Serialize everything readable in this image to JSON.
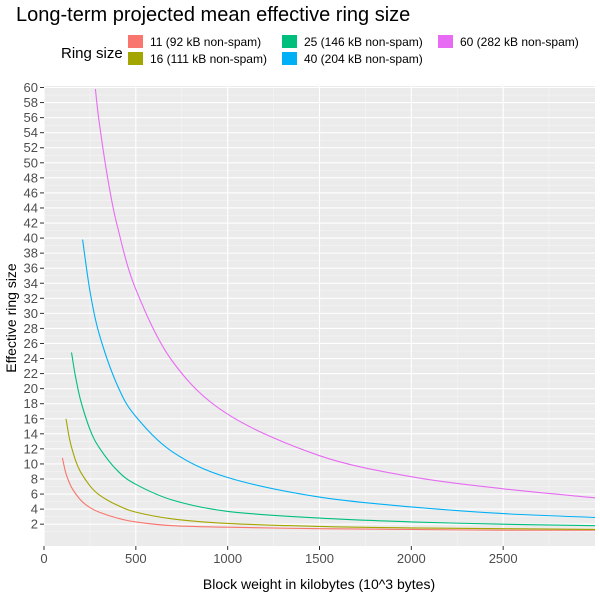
{
  "chart_data": {
    "type": "line",
    "title": "Long-term projected mean effective ring size",
    "xlabel": "Block weight in kilobytes (10^3 bytes)",
    "ylabel": "Effective ring size",
    "xlim": [
      0,
      3000
    ],
    "ylim": [
      0,
      60
    ],
    "x_ticks": [
      0,
      500,
      1000,
      1500,
      2000,
      2500
    ],
    "y_ticks": [
      2,
      4,
      6,
      8,
      10,
      12,
      14,
      16,
      18,
      20,
      22,
      24,
      26,
      28,
      30,
      32,
      34,
      36,
      38,
      40,
      42,
      44,
      46,
      48,
      50,
      52,
      54,
      56,
      58,
      60
    ],
    "grid": true,
    "legend": {
      "title": "Ring size",
      "position": "top"
    },
    "series": [
      {
        "name": "11 (92 kB non-spam)",
        "color": "#f8766d",
        "x": [
          100,
          120,
          150,
          200,
          250,
          300,
          400,
          500,
          700,
          1000,
          1500,
          2000,
          2500,
          3000
        ],
        "y": [
          10.8,
          8.7,
          6.9,
          5.2,
          4.2,
          3.6,
          2.8,
          2.3,
          1.8,
          1.6,
          1.4,
          1.3,
          1.2,
          1.2
        ]
      },
      {
        "name": "16 (111 kB non-spam)",
        "color": "#a3a500",
        "x": [
          120,
          140,
          170,
          200,
          250,
          300,
          400,
          500,
          700,
          1000,
          1500,
          2000,
          2500,
          3000
        ],
        "y": [
          16.0,
          13.2,
          10.6,
          8.9,
          7.1,
          5.9,
          4.5,
          3.6,
          2.7,
          2.1,
          1.7,
          1.5,
          1.4,
          1.3
        ]
      },
      {
        "name": "25 (146 kB non-spam)",
        "color": "#00bf7d",
        "x": [
          150,
          170,
          200,
          250,
          300,
          400,
          500,
          700,
          1000,
          1500,
          2000,
          2500,
          3000
        ],
        "y": [
          24.8,
          21.8,
          18.4,
          14.6,
          12.2,
          9.1,
          7.3,
          5.2,
          3.7,
          2.8,
          2.3,
          2.0,
          1.8
        ]
      },
      {
        "name": "40 (204 kB non-spam)",
        "color": "#00b0f6",
        "x": [
          210,
          250,
          300,
          400,
          500,
          700,
          1000,
          1500,
          2000,
          2500,
          3000
        ],
        "y": [
          39.8,
          33.0,
          27.3,
          20.4,
          16.3,
          11.6,
          8.2,
          5.6,
          4.3,
          3.4,
          2.9
        ]
      },
      {
        "name": "60 (282 kB non-spam)",
        "color": "#e76bf3",
        "x": [
          280,
          300,
          350,
          400,
          500,
          700,
          1000,
          1500,
          2000,
          2500,
          3000
        ],
        "y": [
          59.8,
          55.5,
          47.5,
          41.5,
          33.2,
          23.6,
          16.6,
          11.1,
          8.3,
          6.7,
          5.5
        ]
      }
    ]
  }
}
